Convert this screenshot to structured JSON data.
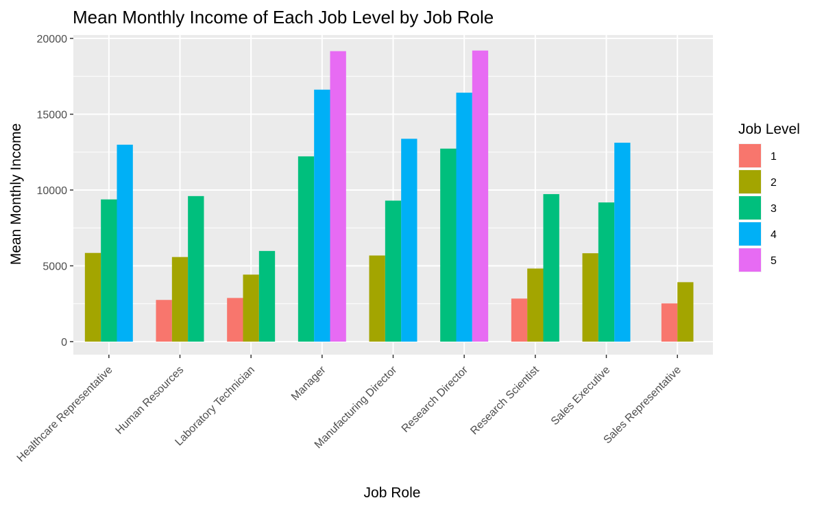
{
  "chart_data": {
    "type": "bar",
    "title": "Mean Monthly Income of Each Job Level by Job Role",
    "xlabel": "Job Role",
    "ylabel": "Mean Monthly Income",
    "ylim": [
      0,
      20000
    ],
    "yticks": [
      0,
      5000,
      10000,
      15000,
      20000
    ],
    "grid": true,
    "legend": {
      "title": "Job Level",
      "position": "right"
    },
    "categories": [
      "Healthcare Representative",
      "Human Resources",
      "Laboratory Technician",
      "Manager",
      "Manufacturing Director",
      "Research Director",
      "Research Scientist",
      "Sales Executive",
      "Sales Representative"
    ],
    "series": [
      {
        "name": "1",
        "color": "#F8766D",
        "values": [
          null,
          2750,
          2880,
          null,
          null,
          null,
          2840,
          null,
          2520
        ]
      },
      {
        "name": "2",
        "color": "#A3A500",
        "values": [
          5850,
          5580,
          4420,
          null,
          5680,
          null,
          4820,
          5830,
          3920
        ]
      },
      {
        "name": "3",
        "color": "#00BF7D",
        "values": [
          9380,
          9600,
          5980,
          12220,
          9300,
          12730,
          9730,
          9180,
          null
        ]
      },
      {
        "name": "4",
        "color": "#00B0F6",
        "values": [
          12990,
          null,
          null,
          16620,
          13380,
          16420,
          null,
          13120,
          null
        ]
      },
      {
        "name": "5",
        "color": "#E76BF3",
        "values": [
          null,
          null,
          null,
          19160,
          null,
          19200,
          null,
          null,
          null
        ]
      }
    ]
  }
}
